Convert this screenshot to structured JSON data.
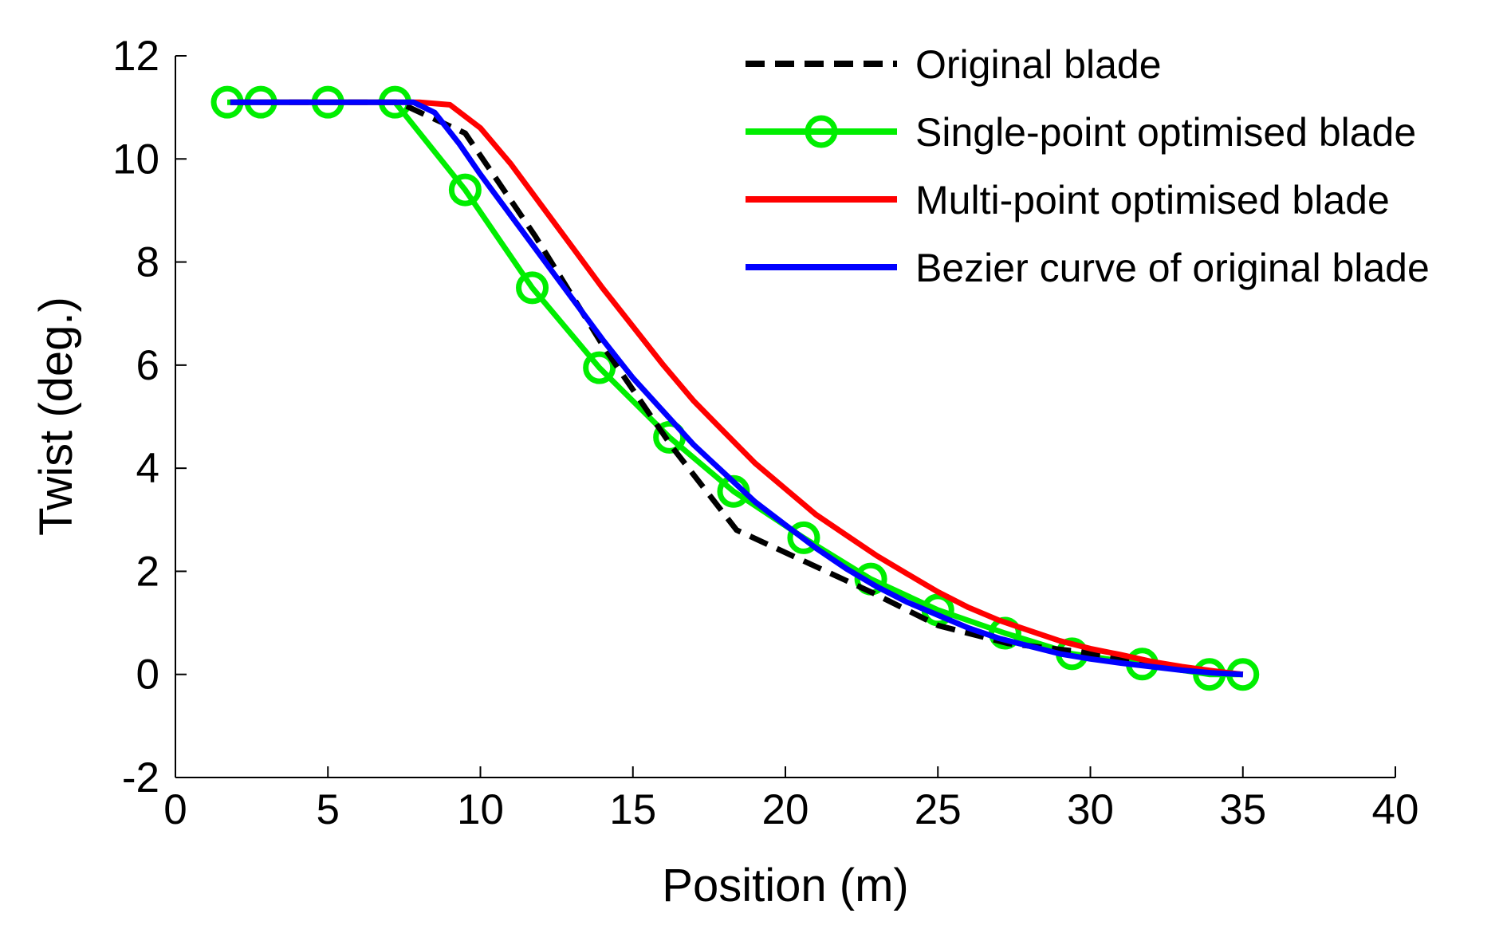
{
  "chart_data": {
    "type": "line",
    "title": "",
    "xlabel": "Position (m)",
    "ylabel": "Twist (deg.)",
    "xlim": [
      0,
      40
    ],
    "ylim": [
      -2,
      12
    ],
    "xticks": [
      0,
      5,
      10,
      15,
      20,
      25,
      30,
      35,
      40
    ],
    "yticks": [
      -2,
      0,
      2,
      4,
      6,
      8,
      10,
      12
    ],
    "grid": false,
    "legend_position": "top-right",
    "series": [
      {
        "name": "Original blade",
        "color": "#000000",
        "style": "dashed",
        "marker": "none",
        "x": [
          1.8,
          7.3,
          9.5,
          11.8,
          14.1,
          16.3,
          18.4,
          20.6,
          22.8,
          25.0,
          27.3,
          29.5,
          31.7,
          33.9,
          35.0
        ],
        "y": [
          11.1,
          11.1,
          10.5,
          8.5,
          6.3,
          4.4,
          2.8,
          2.2,
          1.6,
          0.95,
          0.6,
          0.45,
          0.25,
          0.05,
          0.0
        ]
      },
      {
        "name": "Single-point optimised blade",
        "color": "#00ee00",
        "style": "solid",
        "marker": "circle",
        "x": [
          1.7,
          2.8,
          5.0,
          7.2,
          9.5,
          11.7,
          13.9,
          16.2,
          18.3,
          20.6,
          22.8,
          25.0,
          27.2,
          29.4,
          31.7,
          33.9,
          35.0
        ],
        "y": [
          11.1,
          11.1,
          11.1,
          11.1,
          9.4,
          7.5,
          5.95,
          4.6,
          3.55,
          2.65,
          1.85,
          1.25,
          0.8,
          0.4,
          0.2,
          0.0,
          0.0
        ]
      },
      {
        "name": "Multi-point optimised blade",
        "color": "#ff0000",
        "style": "solid",
        "marker": "none",
        "x": [
          1.8,
          8.0,
          9.0,
          10.0,
          11.0,
          12.0,
          13.0,
          14.0,
          15.0,
          16.0,
          17.0,
          18.0,
          19.0,
          20.0,
          21.0,
          22.0,
          23.0,
          24.0,
          25.0,
          26.0,
          27.0,
          28.0,
          29.0,
          30.0,
          31.0,
          32.0,
          33.0,
          34.0,
          35.0
        ],
        "y": [
          11.1,
          11.1,
          11.05,
          10.6,
          9.9,
          9.1,
          8.3,
          7.5,
          6.75,
          6.0,
          5.3,
          4.7,
          4.1,
          3.6,
          3.1,
          2.7,
          2.3,
          1.95,
          1.6,
          1.3,
          1.05,
          0.85,
          0.65,
          0.5,
          0.38,
          0.25,
          0.15,
          0.07,
          0.0
        ]
      },
      {
        "name": "Bezier curve of original blade",
        "color": "#0000ff",
        "style": "solid",
        "marker": "none",
        "x": [
          1.8,
          7.8,
          8.5,
          9.3,
          10.0,
          11.0,
          12.0,
          13.0,
          14.0,
          15.0,
          16.0,
          17.0,
          18.0,
          19.0,
          20.0,
          21.0,
          22.0,
          23.0,
          24.0,
          25.0,
          26.0,
          27.0,
          28.0,
          29.0,
          30.0,
          31.0,
          32.0,
          33.0,
          34.0,
          35.0
        ],
        "y": [
          11.1,
          11.1,
          10.9,
          10.3,
          9.7,
          8.9,
          8.1,
          7.3,
          6.5,
          5.75,
          5.1,
          4.45,
          3.9,
          3.35,
          2.9,
          2.45,
          2.05,
          1.7,
          1.4,
          1.15,
          0.9,
          0.7,
          0.55,
          0.4,
          0.3,
          0.22,
          0.15,
          0.08,
          0.03,
          0.0
        ]
      }
    ]
  }
}
